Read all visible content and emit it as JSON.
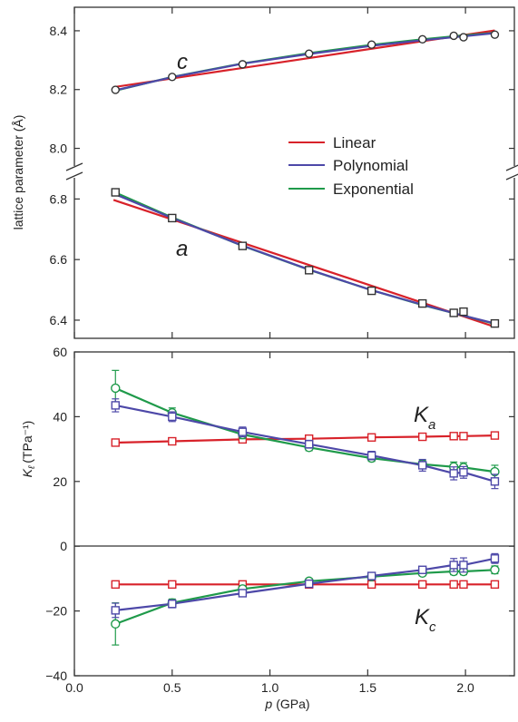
{
  "colors": {
    "linear": "#d8222a",
    "polynomial": "#4d48a8",
    "exponential": "#1f9a4a",
    "markers": "#333333"
  },
  "chart_data": [
    {
      "type": "line",
      "panel": "top",
      "y_axis_broken": true,
      "ylabel": "lattice parameter (Å)",
      "xlabel": "",
      "xlim": [
        0.0,
        2.25
      ],
      "ylim_upper": [
        7.94,
        8.48
      ],
      "ylim_lower": [
        6.34,
        6.87
      ],
      "yticks_upper": [
        "8.0",
        "8.2",
        "8.4"
      ],
      "yticks_lower": [
        "6.4",
        "6.6",
        "6.8"
      ],
      "legend": [
        "Linear",
        "Polynomial",
        "Exponential"
      ],
      "legend_position": "right",
      "grid": false,
      "x": [
        0.21,
        0.5,
        0.86,
        1.2,
        1.52,
        1.78,
        1.94,
        1.99,
        2.15
      ],
      "series": [
        {
          "name": "c",
          "label": "c",
          "marker": "circle",
          "values": [
            8.199,
            8.243,
            8.286,
            8.322,
            8.353,
            8.371,
            8.383,
            8.378,
            8.387
          ]
        },
        {
          "name": "a",
          "label": "a",
          "marker": "square",
          "values": [
            6.822,
            6.737,
            6.645,
            6.565,
            6.497,
            6.455,
            6.424,
            6.428,
            6.389
          ]
        }
      ],
      "fits": {
        "c": {
          "Linear": [
            [
              0.2,
              8.208
            ],
            [
              2.15,
              8.401
            ]
          ],
          "Polynomial": [
            [
              0.2,
              8.196
            ],
            [
              0.5,
              8.242
            ],
            [
              0.86,
              8.288
            ],
            [
              1.2,
              8.321
            ],
            [
              1.52,
              8.349
            ],
            [
              1.78,
              8.368
            ],
            [
              2.0,
              8.382
            ],
            [
              2.15,
              8.392
            ]
          ],
          "Exponential": [
            [
              0.2,
              8.195
            ],
            [
              0.5,
              8.243
            ],
            [
              0.86,
              8.289
            ],
            [
              1.2,
              8.324
            ],
            [
              1.52,
              8.352
            ],
            [
              1.78,
              8.371
            ],
            [
              2.0,
              8.385
            ],
            [
              2.15,
              8.393
            ]
          ]
        },
        "a": {
          "Linear": [
            [
              0.2,
              6.797
            ],
            [
              2.15,
              6.378
            ]
          ],
          "Polynomial": [
            [
              0.2,
              6.818
            ],
            [
              0.5,
              6.737
            ],
            [
              0.86,
              6.646
            ],
            [
              1.2,
              6.567
            ],
            [
              1.52,
              6.499
            ],
            [
              1.78,
              6.451
            ],
            [
              2.0,
              6.413
            ],
            [
              2.15,
              6.389
            ]
          ],
          "Exponential": [
            [
              0.2,
              6.824
            ],
            [
              0.5,
              6.739
            ],
            [
              0.86,
              6.645
            ],
            [
              1.2,
              6.566
            ],
            [
              1.52,
              6.499
            ],
            [
              1.78,
              6.45
            ],
            [
              2.0,
              6.413
            ],
            [
              2.15,
              6.388
            ]
          ]
        }
      }
    },
    {
      "type": "line",
      "panel": "bottom",
      "ylabel": "K",
      "ylabel_sub": "ℓ",
      "ylabel_units": "(TPa⁻¹)",
      "xlabel": "p",
      "xlabel_units": "(GPa)",
      "xlim": [
        0.0,
        2.25
      ],
      "ylim": [
        -40,
        60
      ],
      "xticks": [
        "0.0",
        "0.5",
        "1.0",
        "1.5",
        "2.0"
      ],
      "yticks": [
        "−40",
        "−20",
        "0",
        "20",
        "40",
        "60"
      ],
      "zero_line": true,
      "grid": false,
      "x": [
        0.21,
        0.5,
        0.86,
        1.2,
        1.52,
        1.78,
        1.94,
        1.99,
        2.15
      ],
      "series": [
        {
          "name": "Ka Linear",
          "label": "K",
          "label_sub": "a",
          "method": "Linear",
          "values": [
            32.0,
            32.4,
            33.0,
            33.2,
            33.6,
            33.8,
            34.0,
            34.0,
            34.2
          ],
          "errors": [
            0.8,
            0.8,
            0.8,
            0.8,
            0.8,
            0.8,
            0.8,
            0.8,
            0.8
          ]
        },
        {
          "name": "Ka Polynomial",
          "method": "Polynomial",
          "values": [
            43.5,
            40.0,
            35.3,
            31.5,
            28.0,
            25.0,
            22.5,
            22.8,
            20.0
          ],
          "errors": [
            2.0,
            1.5,
            1.5,
            1.2,
            1.3,
            1.8,
            2.0,
            1.8,
            2.2
          ]
        },
        {
          "name": "Ka Exponential",
          "method": "Exponential",
          "values": [
            48.8,
            41.2,
            34.5,
            30.5,
            27.2,
            25.3,
            24.5,
            24.3,
            23.0
          ],
          "errors": [
            5.5,
            1.5,
            1.3,
            1.0,
            1.0,
            1.2,
            1.5,
            1.5,
            2.0
          ]
        },
        {
          "name": "Kc Linear",
          "label": "K",
          "label_sub": "c",
          "method": "Linear",
          "values": [
            -11.8,
            -11.8,
            -11.8,
            -11.8,
            -11.8,
            -11.8,
            -11.8,
            -11.8,
            -11.8
          ],
          "errors": [
            0.5,
            0.5,
            0.5,
            0.5,
            0.5,
            0.5,
            0.5,
            0.5,
            0.5
          ]
        },
        {
          "name": "Kc Polynomial",
          "method": "Polynomial",
          "values": [
            -19.8,
            -17.8,
            -14.5,
            -11.6,
            -9.2,
            -7.3,
            -5.8,
            -5.8,
            -3.8
          ],
          "errors": [
            2.2,
            1.2,
            1.0,
            0.8,
            0.8,
            1.0,
            2.0,
            2.2,
            1.5
          ]
        },
        {
          "name": "Kc Exponential",
          "method": "Exponential",
          "values": [
            -24.0,
            -17.5,
            -13.2,
            -10.8,
            -9.4,
            -8.3,
            -7.8,
            -7.8,
            -7.3
          ],
          "errors": [
            6.5,
            1.2,
            1.0,
            0.8,
            0.8,
            0.8,
            1.0,
            1.0,
            1.2
          ]
        }
      ]
    }
  ]
}
